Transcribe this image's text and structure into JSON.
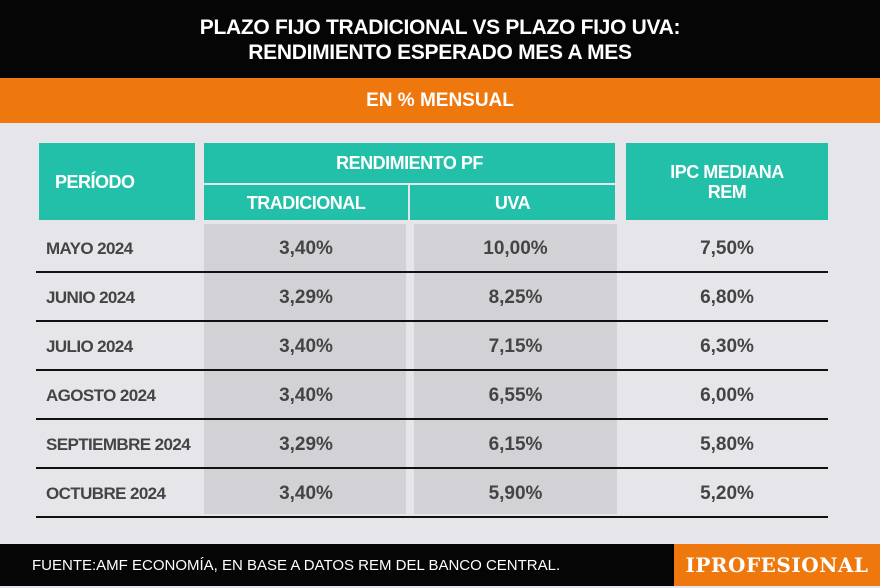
{
  "header": {
    "title_line1": "PLAZO FIJO TRADICIONAL VS PLAZO FIJO UVA:",
    "title_line2": "RENDIMIENTO ESPERADO MES A MES",
    "subtitle": "EN % MENSUAL"
  },
  "chart_data": {
    "type": "table",
    "columns": {
      "periodo": "PERÍODO",
      "group": "RENDIMIENTO PF",
      "tradicional": "TRADICIONAL",
      "uva": "UVA",
      "ipc": "IPC MEDIANA REM"
    },
    "rows": [
      {
        "periodo": "MAYO 2024",
        "tradicional": "3,40%",
        "uva": "10,00%",
        "ipc": "7,50%"
      },
      {
        "periodo": "JUNIO 2024",
        "tradicional": "3,29%",
        "uva": "8,25%",
        "ipc": "6,80%"
      },
      {
        "periodo": "JULIO 2024",
        "tradicional": "3,40%",
        "uva": "7,15%",
        "ipc": "6,30%"
      },
      {
        "periodo": "AGOSTO 2024",
        "tradicional": "3,40%",
        "uva": "6,55%",
        "ipc": "6,00%"
      },
      {
        "periodo": "SEPTIEMBRE 2024",
        "tradicional": "3,29%",
        "uva": "6,15%",
        "ipc": "5,80%"
      },
      {
        "periodo": "OCTUBRE 2024",
        "tradicional": "3,40%",
        "uva": "5,90%",
        "ipc": "5,20%"
      }
    ]
  },
  "footer": {
    "source": "FUENTE:AMF ECONOMÍA, EN BASE A DATOS REM DEL BANCO CENTRAL.",
    "logo": "iPROFESIONAL"
  },
  "colors": {
    "teal": "#22bfa9",
    "orange": "#ef780e",
    "black": "#050505"
  }
}
